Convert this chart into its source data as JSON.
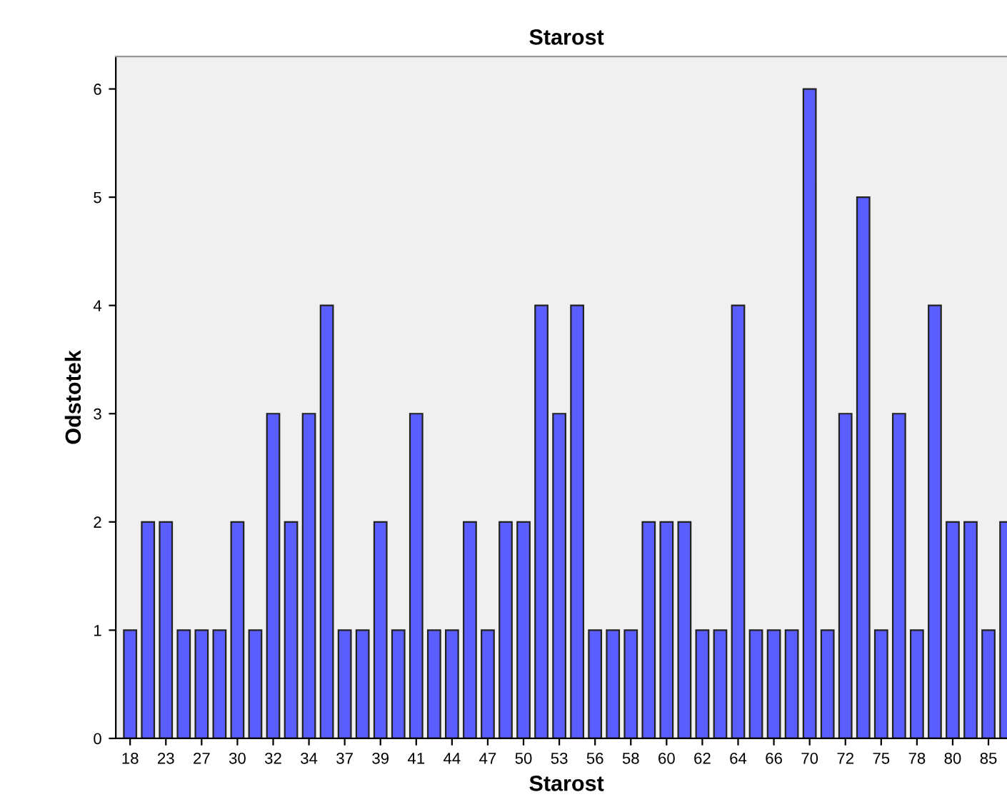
{
  "chart_data": {
    "type": "bar",
    "title": "Starost",
    "xlabel": "Starost",
    "ylabel": "Odstotek",
    "categories": [
      "18",
      null,
      "23",
      null,
      "27",
      null,
      "30",
      null,
      "32",
      null,
      "34",
      null,
      "37",
      null,
      "39",
      null,
      "41",
      null,
      "44",
      null,
      "47",
      null,
      "50",
      null,
      "53",
      null,
      "56",
      null,
      "58",
      null,
      "60",
      null,
      "62",
      null,
      "64",
      null,
      "66",
      null,
      "70",
      null,
      "72",
      null,
      "75",
      null,
      "78",
      null,
      "80",
      null,
      "85",
      null
    ],
    "values": [
      1,
      2,
      2,
      1,
      1,
      1,
      2,
      1,
      3,
      2,
      3,
      4,
      1,
      1,
      2,
      1,
      3,
      1,
      1,
      2,
      1,
      2,
      2,
      4,
      3,
      4,
      1,
      1,
      1,
      2,
      2,
      2,
      1,
      1,
      4,
      1,
      1,
      1,
      6,
      1,
      3,
      5,
      1,
      3,
      1,
      4,
      2,
      2,
      1,
      2
    ],
    "color": "#5a5eff",
    "ylim": [
      0,
      6.3
    ],
    "yticks": [
      0,
      1,
      2,
      3,
      4,
      5,
      6
    ],
    "grid": false
  }
}
